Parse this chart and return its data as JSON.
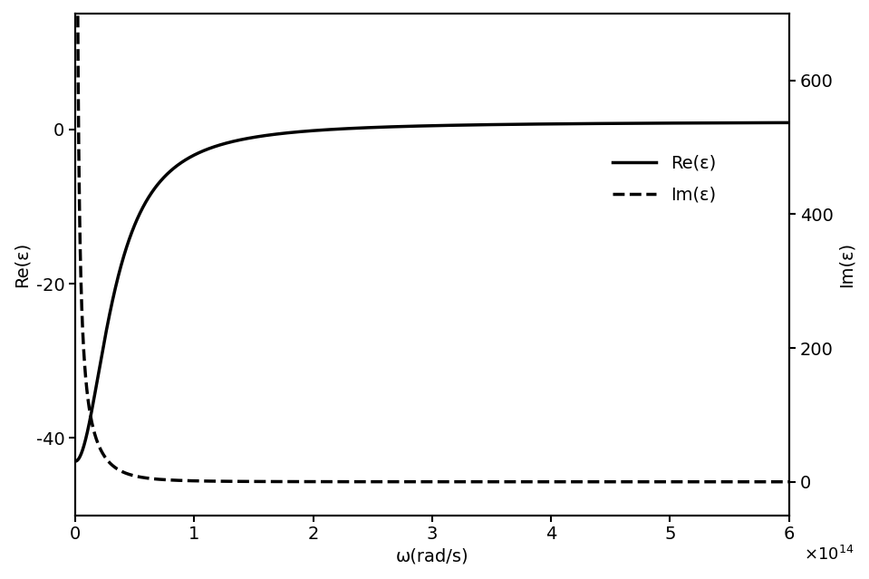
{
  "title": "",
  "xlabel": "ω(rad/s)",
  "ylabel_left": "Re(ε)",
  "ylabel_right": "Im(ε)",
  "xlim": [
    0,
    600000000000000.0
  ],
  "ylim_left": [
    -50,
    15
  ],
  "ylim_right": [
    -50,
    700
  ],
  "xtick_labels": [
    "0",
    "1",
    "2",
    "3",
    "4",
    "5",
    "6"
  ],
  "xtick_values": [
    0,
    100000000000000.0,
    200000000000000.0,
    300000000000000.0,
    400000000000000.0,
    500000000000000.0,
    600000000000000.0
  ],
  "ytick_left": [
    -40,
    -20,
    0
  ],
  "ytick_right": [
    0,
    200,
    400,
    600
  ],
  "legend_labels": [
    "Re(ε)",
    "Im(ε)"
  ],
  "line_color": "black",
  "background_color": "white",
  "drude_wp": 215000000000000.0,
  "drude_gamma": 33000000000000.0,
  "eps_inf": 1.0,
  "fontsize": 14
}
